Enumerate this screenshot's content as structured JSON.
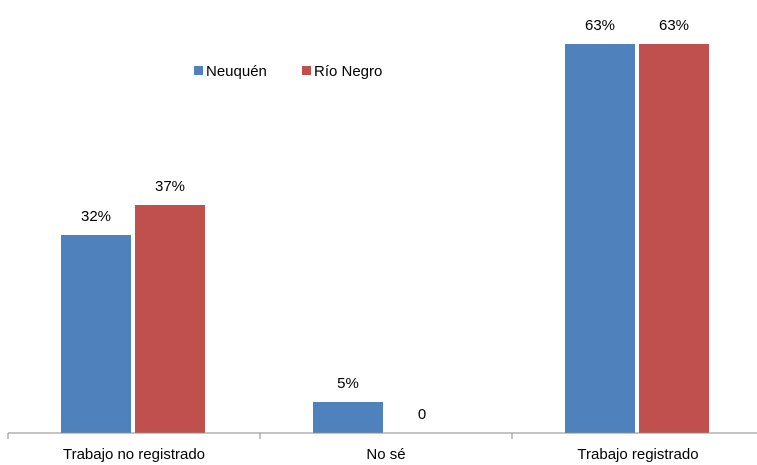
{
  "chart_data": {
    "type": "bar",
    "categories": [
      "Trabajo no registrado",
      "No sé",
      "Trabajo registrado"
    ],
    "series": [
      {
        "name": "Neuquén",
        "color": "#4F81BD",
        "values": [
          32,
          5,
          63
        ],
        "labels": [
          "32%",
          "5%",
          "63%"
        ]
      },
      {
        "name": "Río Negro",
        "color": "#C0504D",
        "values": [
          37,
          0,
          63
        ],
        "labels": [
          "37%",
          "0",
          "63%"
        ]
      }
    ],
    "ylim": [
      0,
      63
    ],
    "grid": false,
    "legend_position": "top-left"
  }
}
